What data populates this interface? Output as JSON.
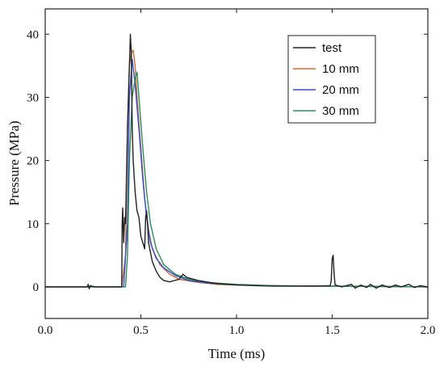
{
  "chart_data": {
    "type": "line",
    "xlabel": "Time (ms)",
    "ylabel": "Pressure (MPa)",
    "xlim": [
      0.0,
      2.0
    ],
    "ylim": [
      -5,
      44
    ],
    "xticks": [
      {
        "value": 0.0,
        "label": "0.0"
      },
      {
        "value": 0.5,
        "label": "0.5"
      },
      {
        "value": 1.0,
        "label": "1.0"
      },
      {
        "value": 1.5,
        "label": "1.5"
      },
      {
        "value": 2.0,
        "label": "2.0"
      }
    ],
    "yticks": [
      {
        "value": 0,
        "label": "0"
      },
      {
        "value": 10,
        "label": "10"
      },
      {
        "value": 20,
        "label": "20"
      },
      {
        "value": 30,
        "label": "30"
      },
      {
        "value": 40,
        "label": "40"
      }
    ],
    "legend_position": "top-right",
    "grid": false,
    "series": [
      {
        "name": "test",
        "color": "#222222",
        "points": [
          [
            0.0,
            0.0
          ],
          [
            0.22,
            0.0
          ],
          [
            0.225,
            0.4
          ],
          [
            0.23,
            -0.3
          ],
          [
            0.235,
            0.2
          ],
          [
            0.26,
            0.0
          ],
          [
            0.4,
            0.0
          ],
          [
            0.402,
            10
          ],
          [
            0.405,
            12.5
          ],
          [
            0.41,
            7
          ],
          [
            0.415,
            11
          ],
          [
            0.42,
            10
          ],
          [
            0.43,
            25
          ],
          [
            0.44,
            35
          ],
          [
            0.445,
            40
          ],
          [
            0.45,
            37
          ],
          [
            0.455,
            25
          ],
          [
            0.46,
            20
          ],
          [
            0.47,
            15
          ],
          [
            0.48,
            12
          ],
          [
            0.49,
            11
          ],
          [
            0.5,
            8
          ],
          [
            0.51,
            7
          ],
          [
            0.52,
            6
          ],
          [
            0.525,
            11
          ],
          [
            0.53,
            12
          ],
          [
            0.535,
            10
          ],
          [
            0.54,
            7
          ],
          [
            0.56,
            4
          ],
          [
            0.58,
            2.5
          ],
          [
            0.6,
            1.5
          ],
          [
            0.62,
            1
          ],
          [
            0.65,
            0.8
          ],
          [
            0.7,
            1.2
          ],
          [
            0.72,
            2.0
          ],
          [
            0.74,
            1.5
          ],
          [
            0.8,
            1.0
          ],
          [
            0.9,
            0.5
          ],
          [
            1.0,
            0.3
          ],
          [
            1.1,
            0.2
          ],
          [
            1.2,
            0.1
          ],
          [
            1.3,
            0.1
          ],
          [
            1.4,
            0.1
          ],
          [
            1.49,
            0.2
          ],
          [
            1.495,
            1
          ],
          [
            1.5,
            4.5
          ],
          [
            1.505,
            5
          ],
          [
            1.51,
            2
          ],
          [
            1.515,
            0.3
          ],
          [
            1.55,
            0.0
          ],
          [
            1.6,
            0.4
          ],
          [
            1.62,
            -0.2
          ],
          [
            1.65,
            0.3
          ],
          [
            1.68,
            -0.1
          ],
          [
            1.7,
            0.4
          ],
          [
            1.73,
            -0.2
          ],
          [
            1.76,
            0.3
          ],
          [
            1.8,
            -0.1
          ],
          [
            1.83,
            0.3
          ],
          [
            1.86,
            0.0
          ],
          [
            1.9,
            0.4
          ],
          [
            1.93,
            -0.1
          ],
          [
            1.96,
            0.2
          ],
          [
            2.0,
            0.0
          ]
        ]
      },
      {
        "name": "10 mm",
        "color": "#c0703a",
        "points": [
          [
            0.0,
            0.0
          ],
          [
            0.4,
            0.0
          ],
          [
            0.42,
            5
          ],
          [
            0.43,
            25
          ],
          [
            0.44,
            35
          ],
          [
            0.45,
            37
          ],
          [
            0.46,
            37.5
          ],
          [
            0.47,
            35
          ],
          [
            0.48,
            30
          ],
          [
            0.5,
            22
          ],
          [
            0.52,
            14
          ],
          [
            0.54,
            9
          ],
          [
            0.56,
            6
          ],
          [
            0.6,
            3.5
          ],
          [
            0.65,
            2.0
          ],
          [
            0.7,
            1.2
          ],
          [
            0.8,
            0.7
          ],
          [
            0.9,
            0.4
          ],
          [
            1.0,
            0.3
          ],
          [
            1.2,
            0.2
          ],
          [
            1.4,
            0.1
          ],
          [
            1.6,
            0.1
          ],
          [
            2.0,
            0.0
          ]
        ]
      },
      {
        "name": "20 mm",
        "color": "#3a4cc8",
        "points": [
          [
            0.0,
            0.0
          ],
          [
            0.41,
            0.0
          ],
          [
            0.43,
            10
          ],
          [
            0.44,
            30
          ],
          [
            0.455,
            36
          ],
          [
            0.47,
            32
          ],
          [
            0.49,
            25
          ],
          [
            0.51,
            17
          ],
          [
            0.53,
            11
          ],
          [
            0.55,
            7
          ],
          [
            0.58,
            4.5
          ],
          [
            0.62,
            3.0
          ],
          [
            0.68,
            1.8
          ],
          [
            0.75,
            1.0
          ],
          [
            0.85,
            0.6
          ],
          [
            1.0,
            0.3
          ],
          [
            1.2,
            0.2
          ],
          [
            1.5,
            0.1
          ],
          [
            2.0,
            0.0
          ]
        ]
      },
      {
        "name": "30 mm",
        "color": "#2e8b5a",
        "points": [
          [
            0.0,
            0.0
          ],
          [
            0.42,
            0.0
          ],
          [
            0.43,
            5
          ],
          [
            0.44,
            20
          ],
          [
            0.455,
            30
          ],
          [
            0.47,
            33
          ],
          [
            0.48,
            34
          ],
          [
            0.49,
            30
          ],
          [
            0.51,
            22
          ],
          [
            0.53,
            15
          ],
          [
            0.55,
            10
          ],
          [
            0.58,
            6
          ],
          [
            0.62,
            3.5
          ],
          [
            0.68,
            2.0
          ],
          [
            0.75,
            1.2
          ],
          [
            0.85,
            0.7
          ],
          [
            1.0,
            0.4
          ],
          [
            1.2,
            0.2
          ],
          [
            1.5,
            0.1
          ],
          [
            2.0,
            0.0
          ]
        ]
      }
    ]
  }
}
